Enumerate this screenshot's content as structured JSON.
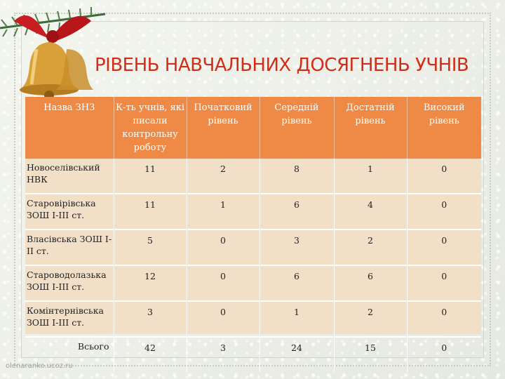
{
  "title": "РІВЕНЬ НАВЧАЛЬНИХ ДОСЯГНЕНЬ УЧНІВ",
  "table": {
    "headers": [
      "Назва ЗНЗ",
      "К-ть учнів, які писали контрольну роботу",
      "Початковий рівень",
      "Середній рівень",
      "Достатній рівень",
      "Високий рівень"
    ],
    "rows": [
      [
        "Новоселівський НВК",
        "11",
        "2",
        "8",
        "1",
        "0"
      ],
      [
        "Старовірівська ЗОШ І-ІІІ ст.",
        "11",
        "1",
        "6",
        "4",
        "0"
      ],
      [
        "Власівська ЗОШ І-ІІ ст.",
        "5",
        "0",
        "3",
        "2",
        "0"
      ],
      [
        "Староводолазька ЗОШ І-ІІІ ст.",
        "12",
        "0",
        "6",
        "6",
        "0"
      ],
      [
        "Комінтернівська ЗОШ І-ІІІ ст.",
        "3",
        "0",
        "1",
        "2",
        "0"
      ],
      [
        "Всього",
        "42",
        "3",
        "24",
        "15",
        "0"
      ]
    ]
  },
  "watermark": "olenaranko.ucoz.ru",
  "colors": {
    "header": "#ee8a45",
    "body": "#f1dfc8",
    "title": "#cf2e18"
  },
  "icons": [
    "christmas-bells-icon",
    "red-ribbon-icon",
    "fir-branch-icon"
  ]
}
